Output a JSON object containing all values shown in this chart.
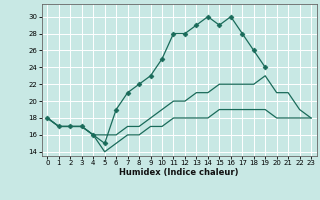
{
  "xlabel": "Humidex (Indice chaleur)",
  "xlim": [
    -0.5,
    23.5
  ],
  "ylim": [
    13.5,
    31.5
  ],
  "yticks": [
    14,
    16,
    18,
    20,
    22,
    24,
    26,
    28,
    30
  ],
  "xticks": [
    0,
    1,
    2,
    3,
    4,
    5,
    6,
    7,
    8,
    9,
    10,
    11,
    12,
    13,
    14,
    15,
    16,
    17,
    18,
    19,
    20,
    21,
    22,
    23
  ],
  "bg_color": "#c8e8e4",
  "line_color": "#1a6b5a",
  "grid_color": "#ffffff",
  "lines": [
    {
      "x": [
        0,
        1,
        2,
        3,
        4,
        5,
        6,
        7,
        8,
        9,
        10,
        11,
        12,
        13,
        14,
        15,
        16,
        17,
        18,
        19
      ],
      "y": [
        18,
        17,
        17,
        17,
        16,
        15,
        19,
        21,
        22,
        23,
        25,
        28,
        28,
        29,
        30,
        29,
        30,
        28,
        26,
        24
      ],
      "has_markers": true
    },
    {
      "x": [
        0,
        1,
        2,
        3,
        4,
        5,
        6,
        7,
        8,
        9,
        10,
        11,
        12,
        13,
        14,
        15,
        16,
        17,
        18,
        19,
        20,
        21,
        22,
        23
      ],
      "y": [
        18,
        17,
        17,
        17,
        16,
        16,
        16,
        17,
        17,
        18,
        19,
        20,
        20,
        21,
        21,
        22,
        22,
        22,
        22,
        23,
        21,
        21,
        19,
        18
      ],
      "has_markers": false
    },
    {
      "x": [
        0,
        1,
        2,
        3,
        4,
        5,
        6,
        7,
        8,
        9,
        10,
        11,
        12,
        13,
        14,
        15,
        16,
        17,
        18,
        19,
        20,
        21,
        22,
        23
      ],
      "y": [
        18,
        17,
        17,
        17,
        16,
        14,
        15,
        16,
        16,
        17,
        17,
        18,
        18,
        18,
        18,
        19,
        19,
        19,
        19,
        19,
        18,
        18,
        18,
        18
      ],
      "has_markers": false
    }
  ]
}
